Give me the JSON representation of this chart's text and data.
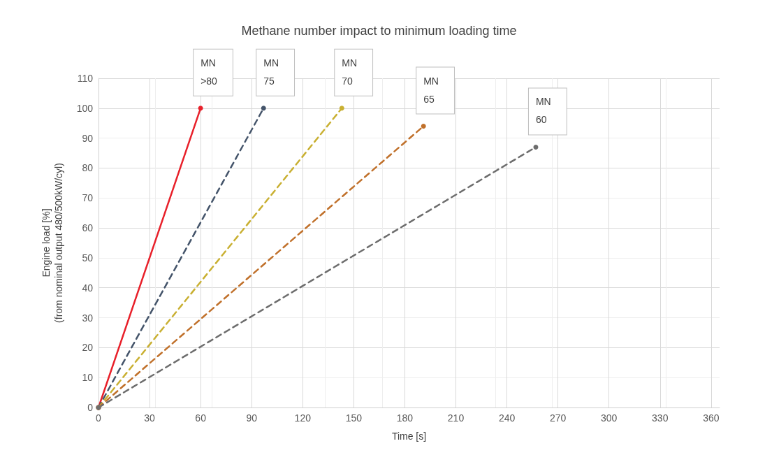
{
  "chart_data": {
    "type": "line",
    "title": "Methane number impact to minimum loading time",
    "xlabel": "Time [s]",
    "ylabel": "Engine load [%]\n(from nominal output 480/500kW/cyl)",
    "series": [
      {
        "name": "MN >80",
        "color": "#e8202a",
        "line_style": "solid",
        "x": [
          0,
          60
        ],
        "values": [
          0,
          100
        ]
      },
      {
        "name": "MN 75",
        "color": "#44546a",
        "line_style": "dashed",
        "x": [
          0,
          97
        ],
        "values": [
          0,
          100
        ]
      },
      {
        "name": "MN 70",
        "color": "#c9b032",
        "line_style": "dashed",
        "x": [
          0,
          143
        ],
        "values": [
          0,
          100
        ]
      },
      {
        "name": "MN 65",
        "color": "#c0702a",
        "line_style": "dashed",
        "x": [
          0,
          191
        ],
        "values": [
          0,
          94
        ]
      },
      {
        "name": "MN 60",
        "color": "#6d6d6d",
        "line_style": "dashed",
        "x": [
          0,
          257
        ],
        "values": [
          0,
          87
        ]
      }
    ],
    "marker": "circle",
    "grid": true,
    "legend": false,
    "xlim": [
      0,
      365
    ],
    "xticks": [
      0,
      30,
      60,
      90,
      120,
      150,
      180,
      210,
      240,
      270,
      300,
      330,
      360
    ],
    "ylim": [
      0,
      110
    ],
    "yticks": [
      0,
      10,
      20,
      30,
      40,
      50,
      60,
      70,
      80,
      90,
      100,
      110
    ]
  }
}
